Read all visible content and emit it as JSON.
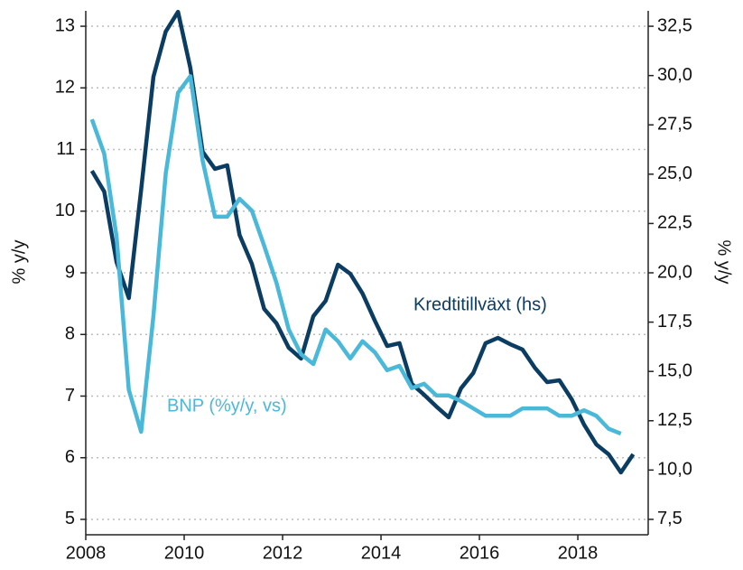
{
  "chart_data": {
    "type": "line",
    "ylabel": "% y/y",
    "y2label": "% y/y",
    "annotations": [
      "Kredtitillväxt (hs)",
      "BNP (%y/y, vs)"
    ],
    "x": [
      2008.125,
      2008.375,
      2008.625,
      2008.875,
      2009.125,
      2009.375,
      2009.625,
      2009.875,
      2010.125,
      2010.375,
      2010.625,
      2010.875,
      2011.125,
      2011.375,
      2011.625,
      2011.875,
      2012.125,
      2012.375,
      2012.625,
      2012.875,
      2013.125,
      2013.375,
      2013.625,
      2013.875,
      2014.125,
      2014.375,
      2014.625,
      2014.875,
      2015.125,
      2015.375,
      2015.625,
      2015.875,
      2016.125,
      2016.375,
      2016.625,
      2016.875,
      2017.125,
      2017.375,
      2017.625,
      2017.875,
      2018.125,
      2018.375,
      2018.625,
      2018.875,
      2019.125
    ],
    "series": [
      {
        "name": "Kredtitillväxt (hs)",
        "color": "#0b3d63",
        "axis": "y2",
        "values": [
          25.17,
          24.12,
          20.55,
          18.72,
          24.21,
          29.94,
          32.23,
          33.23,
          30.39,
          26.14,
          25.27,
          25.45,
          21.92,
          20.46,
          18.17,
          17.44,
          16.2,
          15.65,
          17.8,
          18.58,
          20.41,
          19.95,
          18.95,
          17.57,
          16.29,
          16.43,
          14.37,
          13.82,
          13.22,
          12.67,
          14.14,
          14.92,
          16.43,
          16.7,
          16.38,
          16.11,
          15.19,
          14.46,
          14.55,
          13.59,
          12.31,
          11.3,
          10.8,
          9.88,
          10.8
        ]
      },
      {
        "name": "BNP (%y/y, vs)",
        "color": "#4ab8d8",
        "axis": "y",
        "values": [
          11.49,
          10.93,
          9.59,
          7.1,
          6.42,
          8.3,
          10.61,
          11.92,
          12.19,
          10.82,
          9.91,
          9.91,
          10.2,
          10.01,
          9.44,
          8.84,
          8.08,
          7.68,
          7.52,
          8.08,
          7.89,
          7.61,
          7.89,
          7.71,
          7.42,
          7.49,
          7.13,
          7.2,
          7.01,
          7.01,
          6.92,
          6.8,
          6.68,
          6.68,
          6.68,
          6.8,
          6.8,
          6.8,
          6.68,
          6.68,
          6.77,
          6.68,
          6.47,
          6.39,
          null
        ]
      }
    ],
    "xlim": [
      2008,
      2019.43
    ],
    "xticks": [
      2008,
      2010,
      2012,
      2014,
      2016,
      2018
    ],
    "ylim": [
      4.75,
      13.25
    ],
    "yticks": [
      5,
      6,
      7,
      8,
      9,
      10,
      11,
      12,
      13
    ],
    "y2lim": [
      6.71875,
      33.28125
    ],
    "y2ticks": [
      {
        "value": 7.5,
        "label": "7,5"
      },
      {
        "value": 10,
        "label": "10,0"
      },
      {
        "value": 12.5,
        "label": "12,5"
      },
      {
        "value": 15,
        "label": "15,0"
      },
      {
        "value": 17.5,
        "label": "17,5"
      },
      {
        "value": 20,
        "label": "20,0"
      },
      {
        "value": 22.5,
        "label": "22,5"
      },
      {
        "value": 25,
        "label": "25,0"
      },
      {
        "value": 27.5,
        "label": "27,5"
      },
      {
        "value": 30,
        "label": "30,0"
      },
      {
        "value": 32.5,
        "label": "32,5"
      }
    ],
    "grid": true
  }
}
